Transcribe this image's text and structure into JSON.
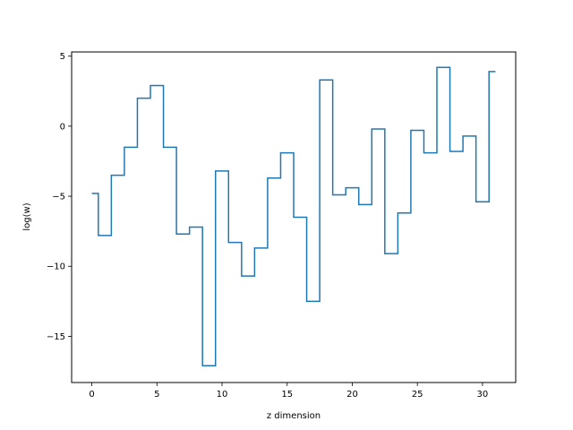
{
  "chart_data": {
    "type": "line",
    "drawstyle": "steps-mid",
    "title": "",
    "xlabel": "z dimension",
    "ylabel": "log(w)",
    "xlim": [
      -1.55,
      32.55
    ],
    "ylim": [
      -18.3,
      5.3
    ],
    "x_ticks": [
      0,
      5,
      10,
      15,
      20,
      25,
      30
    ],
    "x_tick_labels": [
      "0",
      "5",
      "10",
      "15",
      "20",
      "25",
      "30"
    ],
    "y_ticks": [
      5,
      0,
      -5,
      -10,
      -15
    ],
    "y_tick_labels": [
      "5",
      "0",
      "−5",
      "−10",
      "−15"
    ],
    "grid": false,
    "series": [
      {
        "color": "#1f77b4",
        "x": [
          0,
          1,
          2,
          3,
          4,
          5,
          6,
          7,
          8,
          9,
          10,
          11,
          12,
          13,
          14,
          15,
          16,
          17,
          18,
          19,
          20,
          21,
          22,
          23,
          24,
          25,
          26,
          27,
          28,
          29,
          30,
          31
        ],
        "values": [
          -4.8,
          -7.8,
          -3.5,
          -1.5,
          2.0,
          2.9,
          -1.5,
          -7.7,
          -7.2,
          -17.1,
          -3.2,
          -8.3,
          -10.7,
          -8.7,
          -3.7,
          -1.9,
          -6.5,
          -12.5,
          3.3,
          -4.9,
          -4.4,
          -5.6,
          -0.2,
          -9.1,
          -6.2,
          -0.3,
          -1.9,
          4.2,
          -1.8,
          -0.7,
          -5.4,
          3.9
        ]
      }
    ]
  }
}
